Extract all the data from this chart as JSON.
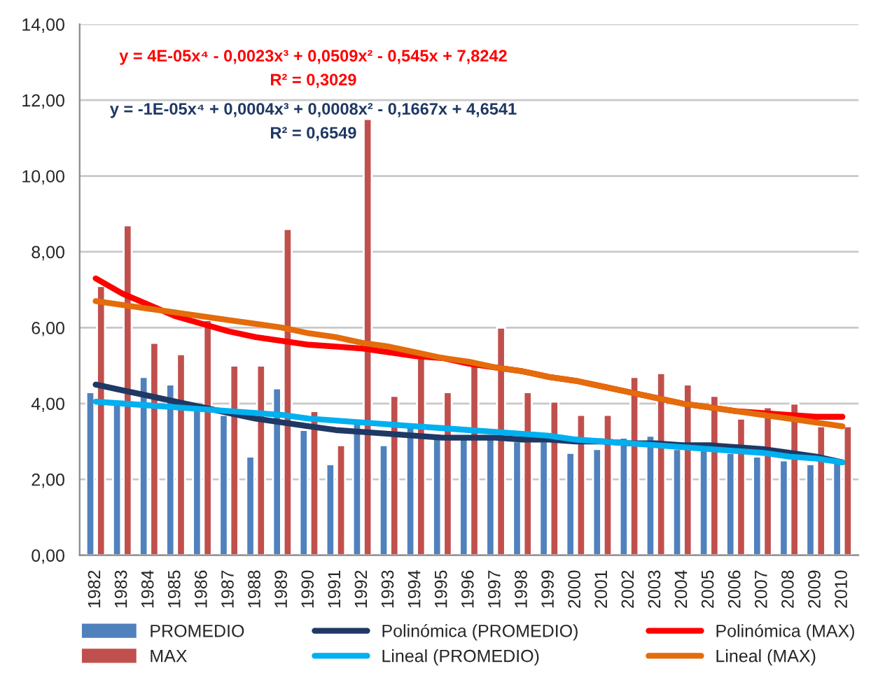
{
  "chart_data": {
    "type": "bar",
    "categories": [
      "1982",
      "1983",
      "1984",
      "1985",
      "1986",
      "1987",
      "1988",
      "1989",
      "1990",
      "1991",
      "1992",
      "1993",
      "1994",
      "1995",
      "1996",
      "1997",
      "1998",
      "1999",
      "2000",
      "2001",
      "2002",
      "2003",
      "2004",
      "2005",
      "2006",
      "2007",
      "2008",
      "2009",
      "2010"
    ],
    "series": [
      {
        "name": "PROMEDIO",
        "color": "#4f81bd",
        "values": [
          4.3,
          4.0,
          4.7,
          4.5,
          3.9,
          3.7,
          2.6,
          4.4,
          3.3,
          2.4,
          3.5,
          2.9,
          3.4,
          3.2,
          3.1,
          3.1,
          3.0,
          3.0,
          2.7,
          2.8,
          3.1,
          3.15,
          2.8,
          2.8,
          2.7,
          2.6,
          2.5,
          2.4,
          2.45
        ]
      },
      {
        "name": "MAX",
        "color": "#c0504d",
        "values": [
          7.1,
          8.7,
          5.6,
          5.3,
          6.2,
          5.0,
          5.0,
          8.6,
          3.8,
          2.9,
          11.5,
          4.2,
          5.2,
          4.3,
          5.0,
          6.0,
          4.3,
          4.05,
          3.7,
          3.7,
          4.7,
          4.8,
          4.5,
          4.2,
          3.6,
          3.9,
          4.0,
          3.4,
          3.4
        ]
      },
      {
        "name": "Polinómica (PROMEDIO)",
        "type": "line",
        "color": "#1f3864",
        "values": [
          4.5,
          4.35,
          4.2,
          4.05,
          3.9,
          3.75,
          3.6,
          3.5,
          3.4,
          3.3,
          3.25,
          3.2,
          3.15,
          3.1,
          3.1,
          3.1,
          3.05,
          3.05,
          3.0,
          3.0,
          2.95,
          2.95,
          2.9,
          2.9,
          2.85,
          2.8,
          2.7,
          2.6,
          2.45
        ]
      },
      {
        "name": "Lineal (PROMEDIO)",
        "type": "line",
        "color": "#00b0f0",
        "values": [
          4.05,
          4.0,
          3.95,
          3.9,
          3.85,
          3.8,
          3.75,
          3.7,
          3.6,
          3.55,
          3.5,
          3.45,
          3.4,
          3.35,
          3.3,
          3.25,
          3.2,
          3.15,
          3.05,
          3.0,
          2.95,
          2.9,
          2.85,
          2.8,
          2.75,
          2.7,
          2.6,
          2.55,
          2.45
        ]
      },
      {
        "name": "Polinómica (MAX)",
        "type": "line",
        "color": "#ff0000",
        "values": [
          7.3,
          6.9,
          6.6,
          6.3,
          6.1,
          5.9,
          5.75,
          5.65,
          5.55,
          5.5,
          5.45,
          5.35,
          5.25,
          5.2,
          5.05,
          4.95,
          4.85,
          4.7,
          4.6,
          4.45,
          4.3,
          4.15,
          4.0,
          3.9,
          3.8,
          3.75,
          3.7,
          3.65,
          3.65
        ]
      },
      {
        "name": "Lineal (MAX)",
        "type": "line",
        "color": "#e46c0a",
        "values": [
          6.7,
          6.6,
          6.5,
          6.4,
          6.3,
          6.2,
          6.1,
          6.0,
          5.85,
          5.75,
          5.6,
          5.5,
          5.35,
          5.2,
          5.1,
          4.95,
          4.85,
          4.7,
          4.6,
          4.45,
          4.3,
          4.15,
          4.0,
          3.9,
          3.8,
          3.7,
          3.6,
          3.5,
          3.4
        ]
      }
    ],
    "annotations": [
      "y = 4E-05x⁴ - 0,0023x³ + 0,0509x² - 0,545x + 7,8242",
      "R² = 0,3029",
      "y = -1E-05x⁴ + 0,0004x³ + 0,0008x² - 0,1667x + 4,6541",
      "R² = 0,6549"
    ],
    "ylim": [
      0,
      14
    ],
    "yticks": [
      {
        "value": 0,
        "label": "0,00"
      },
      {
        "value": 2,
        "label": "2,00"
      },
      {
        "value": 4,
        "label": "4,00"
      },
      {
        "value": 6,
        "label": "6,00"
      },
      {
        "value": 8,
        "label": "8,00"
      },
      {
        "value": 10,
        "label": "10,00"
      },
      {
        "value": 12,
        "label": "12,00"
      },
      {
        "value": 14,
        "label": "14,00"
      }
    ],
    "grid": "y",
    "legend": "bottom",
    "line_style": "solid",
    "marker": "none"
  }
}
